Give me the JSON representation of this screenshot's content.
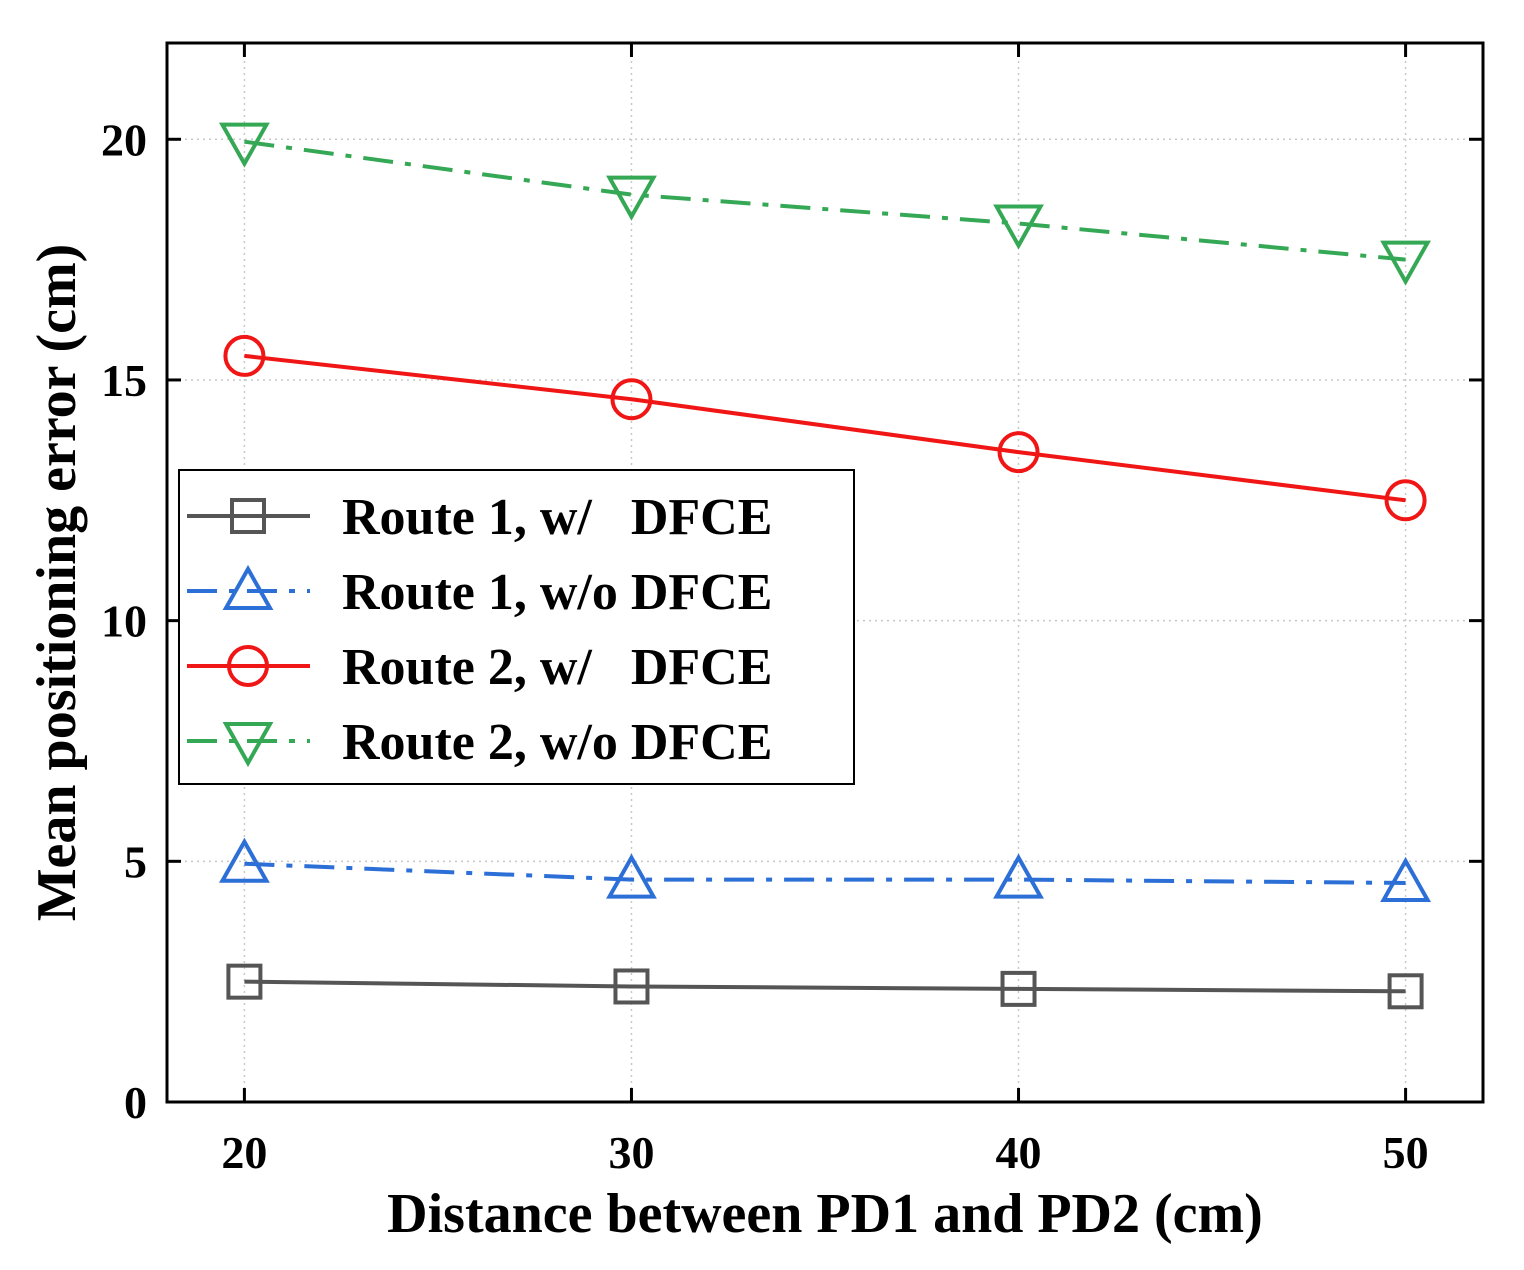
{
  "chart_data": {
    "type": "line",
    "title": "",
    "xlabel": "Distance between PD1 and PD2 (cm)",
    "ylabel": "Mean positioning error (cm)",
    "x": [
      20,
      30,
      40,
      50
    ],
    "xticks": [
      20,
      30,
      40,
      50
    ],
    "yticks": [
      0,
      5,
      10,
      15,
      20
    ],
    "xlim": [
      18,
      52
    ],
    "ylim": [
      0,
      22
    ],
    "grid": true,
    "legend_position": "center-left",
    "series": [
      {
        "name": "Route 1, w/   DFCE",
        "values": [
          2.5,
          2.4,
          2.35,
          2.3
        ],
        "color": "#555555",
        "marker": "square",
        "line": "solid"
      },
      {
        "name": "Route 1, w/o DFCE",
        "values": [
          4.95,
          4.62,
          4.62,
          4.55
        ],
        "color": "#2c6fd6",
        "marker": "triangle-up",
        "line": "dashdot"
      },
      {
        "name": "Route 2, w/   DFCE",
        "values": [
          15.5,
          14.6,
          13.5,
          12.5
        ],
        "color": "#f01616",
        "marker": "circle",
        "line": "solid"
      },
      {
        "name": "Route 2, w/o DFCE",
        "values": [
          19.95,
          18.85,
          18.25,
          17.5
        ],
        "color": "#35a855",
        "marker": "triangle-down",
        "line": "dashdot"
      }
    ]
  }
}
